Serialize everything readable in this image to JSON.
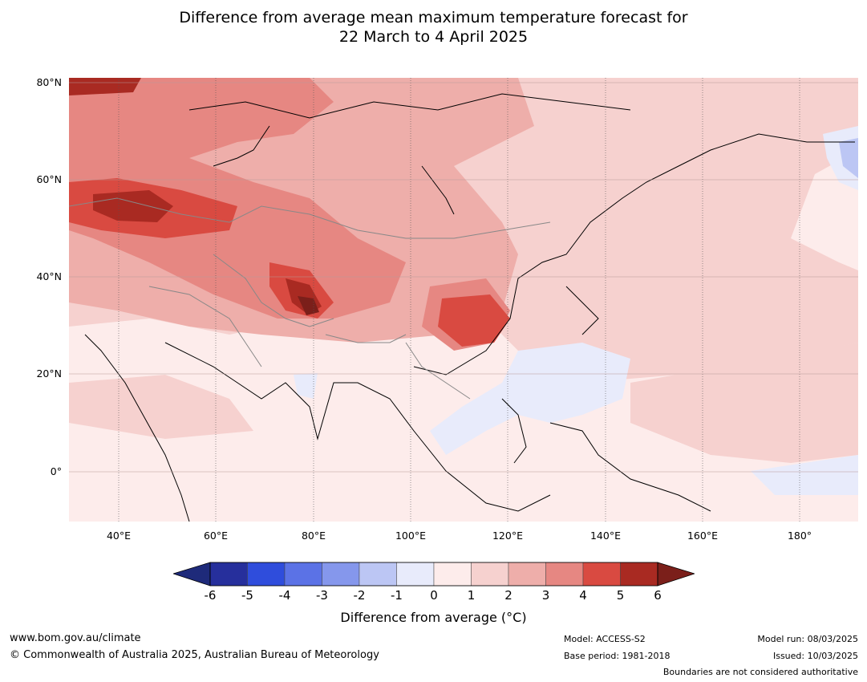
{
  "title": {
    "line1": "Difference from average mean maximum temperature forecast for",
    "line2": "22 March to 4 April 2025"
  },
  "map": {
    "region": "Asia",
    "lat_labels": [
      "80°N",
      "60°N",
      "40°N",
      "20°N",
      "0°"
    ],
    "lon_labels": [
      "40°E",
      "60°E",
      "80°E",
      "100°E",
      "120°E",
      "140°E",
      "160°E",
      "180°"
    ],
    "notable_features": [
      {
        "area": "central Asia / Tibet west",
        "anomaly_c": 6,
        "description": "strongest warm anomaly"
      },
      {
        "area": "southern Russia / Kazakhstan west",
        "anomaly_c": 5
      },
      {
        "area": "eastern China",
        "anomaly_c": 4
      },
      {
        "area": "South China Sea / western Pacific",
        "anomaly_c": -1
      },
      {
        "area": "far northeast Siberia",
        "anomaly_c": -2
      }
    ]
  },
  "colorbar": {
    "ticks": [
      "-6",
      "-5",
      "-4",
      "-3",
      "-2",
      "-1",
      "0",
      "1",
      "2",
      "3",
      "4",
      "5",
      "6"
    ],
    "colors": [
      "#262f9c",
      "#2f4ddc",
      "#5b72e6",
      "#8597ec",
      "#bcc6f4",
      "#e8ebfb",
      "#fdeceb",
      "#f6d1cf",
      "#eeaeaa",
      "#e68782",
      "#d94a41",
      "#a92a22"
    ],
    "under_color": "#1e2a7a",
    "over_color": "#7b1f1a",
    "label": "Difference from average ($^\\circ$C)",
    "label_display": "Difference from average (°C)"
  },
  "footer": {
    "url": "www.bom.gov.au/climate",
    "copyright": "© Commonwealth of Australia 2025, Australian Bureau of Meteorology",
    "model": "Model: ACCESS-S2",
    "base_period": "Base period: 1981-2018",
    "model_run": "Model run: 08/03/2025",
    "issued": "Issued: 10/03/2025",
    "disclaimer": "Boundaries are not considered authoritative"
  }
}
